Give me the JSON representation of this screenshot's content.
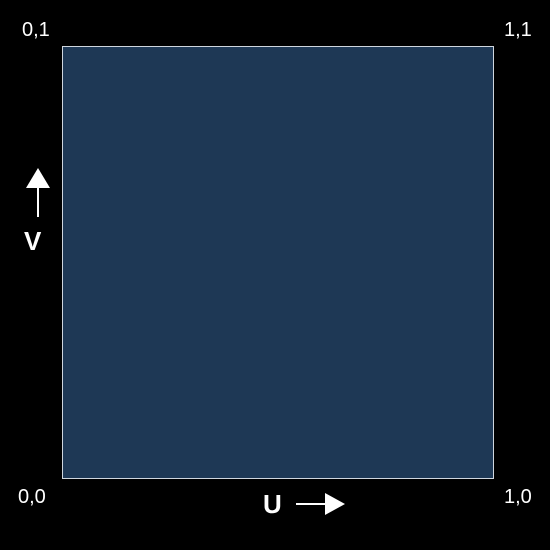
{
  "corners": {
    "top_left": "0,1",
    "top_right": "1,1",
    "bottom_left": "0,0",
    "bottom_right": "1,0"
  },
  "axes": {
    "u_label": "U",
    "v_label": "V"
  },
  "icons": {
    "u_arrow": "arrow-right-icon",
    "v_arrow": "arrow-up-icon"
  },
  "colors": {
    "background": "#000000",
    "square_fill": "#1e3855",
    "square_border": "#cfd6de",
    "text": "#ffffff"
  }
}
